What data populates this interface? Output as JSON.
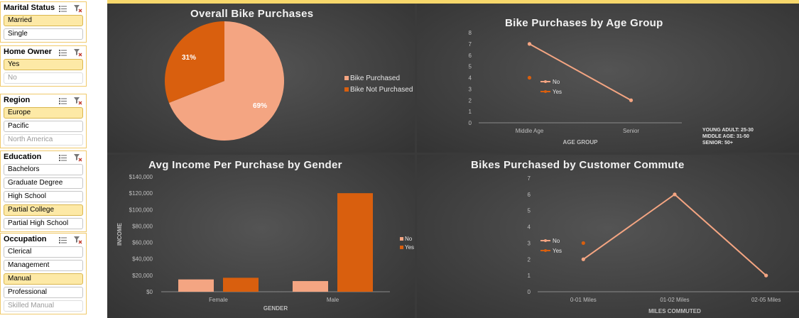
{
  "slicers": [
    {
      "title": "Marital Status",
      "items": [
        {
          "label": "Married",
          "state": "selected"
        },
        {
          "label": "Single",
          "state": "normal"
        }
      ]
    },
    {
      "title": "Home Owner",
      "items": [
        {
          "label": "Yes",
          "state": "selected"
        },
        {
          "label": "No",
          "state": "dim"
        }
      ]
    },
    {
      "title": "Region",
      "items": [
        {
          "label": "Europe",
          "state": "selected"
        },
        {
          "label": "Pacific",
          "state": "normal"
        },
        {
          "label": "North America",
          "state": "dim"
        }
      ]
    },
    {
      "title": "Education",
      "items": [
        {
          "label": "Bachelors",
          "state": "normal"
        },
        {
          "label": "Graduate Degree",
          "state": "normal"
        },
        {
          "label": "High School",
          "state": "normal"
        },
        {
          "label": "Partial College",
          "state": "selected"
        },
        {
          "label": "Partial High School",
          "state": "normal"
        }
      ]
    },
    {
      "title": "Occupation",
      "items": [
        {
          "label": "Clerical",
          "state": "normal"
        },
        {
          "label": "Management",
          "state": "normal"
        },
        {
          "label": "Manual",
          "state": "selected"
        },
        {
          "label": "Professional",
          "state": "normal"
        },
        {
          "label": "Skilled Manual",
          "state": "dim"
        }
      ]
    }
  ],
  "colors": {
    "no": "#f4a582",
    "yes": "#d95f0e",
    "slicer_selected": "#fde9a6",
    "slicer_border": "#f0c96a"
  },
  "icons": {
    "multi_select": "multi-select-icon",
    "clear_filter": "clear-filter-icon"
  },
  "chart_data": [
    {
      "id": "pie",
      "type": "pie",
      "title": "Overall Bike Purchases",
      "slices": [
        {
          "name": "Bike Purchased",
          "value": 69,
          "label": "69%"
        },
        {
          "name": "Bike Not Purchased",
          "value": 31,
          "label": "31%"
        }
      ],
      "legend": "right"
    },
    {
      "id": "age",
      "type": "line",
      "title": "Bike Purchases by Age Group",
      "categories": [
        "Middle Age",
        "Senior"
      ],
      "series": [
        {
          "name": "No",
          "values": [
            7,
            2
          ]
        },
        {
          "name": "Yes",
          "values": [
            4,
            null
          ]
        }
      ],
      "xlabel": "AGE GROUP",
      "ylim": [
        0,
        8
      ],
      "yticks": [
        "0",
        "1",
        "2",
        "3",
        "4",
        "5",
        "6",
        "7",
        "8"
      ],
      "secondary_ticks": [
        "0",
        "1",
        "2",
        "3",
        "4",
        "5",
        "6",
        "7",
        "8"
      ],
      "legend": "right",
      "notes": [
        "YOUNG ADULT: 25-30",
        "MIDDLE AGE: 31-50",
        "SENIOR: 50+"
      ]
    },
    {
      "id": "income",
      "type": "bar",
      "title": "Avg Income Per Purchase by Gender",
      "categories": [
        "Female",
        "Male"
      ],
      "series": [
        {
          "name": "No",
          "values": [
            15000,
            13000
          ]
        },
        {
          "name": "Yes",
          "values": [
            17000,
            120000
          ]
        }
      ],
      "xlabel": "GENDER",
      "ylabel": "INCOME",
      "ylim": [
        0,
        140000
      ],
      "yticks": [
        "$0",
        "$20,000",
        "$40,000",
        "$60,000",
        "$80,000",
        "$100,000",
        "$120,000",
        "$140,000"
      ],
      "legend": "right"
    },
    {
      "id": "commute",
      "type": "line",
      "title": "Bikes Purchased by Customer Commute",
      "categories": [
        "0-01 Miles",
        "01-02 Miles",
        "02-05 Miles"
      ],
      "series": [
        {
          "name": "No",
          "values": [
            2,
            6,
            1
          ]
        },
        {
          "name": "Yes",
          "values": [
            3,
            null,
            null
          ]
        }
      ],
      "xlabel": "MILES COMMUTED",
      "ylim": [
        0,
        7
      ],
      "yticks": [
        "0",
        "1",
        "2",
        "3",
        "4",
        "5",
        "6",
        "7"
      ],
      "secondary_ticks": [
        "0",
        "1",
        "2",
        "3",
        "4",
        "5",
        "6",
        "7",
        "8",
        "9"
      ],
      "legend": "right"
    }
  ]
}
